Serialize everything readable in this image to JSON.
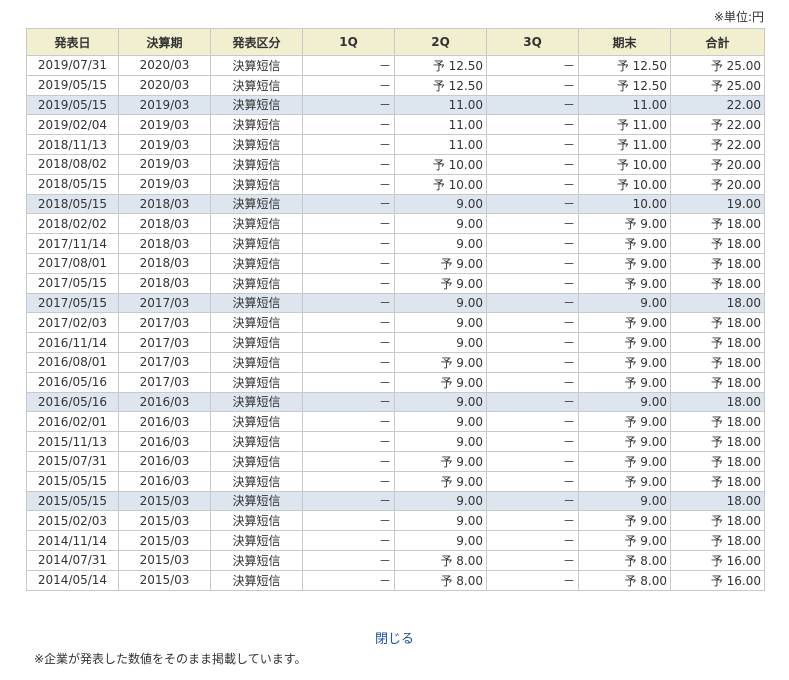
{
  "unit_label": "※単位:円",
  "headers": [
    "発表日",
    "決算期",
    "発表区分",
    "1Q",
    "2Q",
    "3Q",
    "期末",
    "合計"
  ],
  "rows": [
    {
      "date": "2019/07/31",
      "period": "2020/03",
      "type": "決算短信",
      "q1": "－",
      "q2": "予 12.50",
      "q3": "－",
      "year_end": "予 12.50",
      "total": "予 25.00",
      "highlight": false
    },
    {
      "date": "2019/05/15",
      "period": "2020/03",
      "type": "決算短信",
      "q1": "－",
      "q2": "予 12.50",
      "q3": "－",
      "year_end": "予 12.50",
      "total": "予 25.00",
      "highlight": false
    },
    {
      "date": "2019/05/15",
      "period": "2019/03",
      "type": "決算短信",
      "q1": "－",
      "q2": "11.00",
      "q3": "－",
      "year_end": "11.00",
      "total": "22.00",
      "highlight": true
    },
    {
      "date": "2019/02/04",
      "period": "2019/03",
      "type": "決算短信",
      "q1": "－",
      "q2": "11.00",
      "q3": "－",
      "year_end": "予 11.00",
      "total": "予 22.00",
      "highlight": false
    },
    {
      "date": "2018/11/13",
      "period": "2019/03",
      "type": "決算短信",
      "q1": "－",
      "q2": "11.00",
      "q3": "－",
      "year_end": "予 11.00",
      "total": "予 22.00",
      "highlight": false
    },
    {
      "date": "2018/08/02",
      "period": "2019/03",
      "type": "決算短信",
      "q1": "－",
      "q2": "予 10.00",
      "q3": "－",
      "year_end": "予 10.00",
      "total": "予 20.00",
      "highlight": false
    },
    {
      "date": "2018/05/15",
      "period": "2019/03",
      "type": "決算短信",
      "q1": "－",
      "q2": "予 10.00",
      "q3": "－",
      "year_end": "予 10.00",
      "total": "予 20.00",
      "highlight": false
    },
    {
      "date": "2018/05/15",
      "period": "2018/03",
      "type": "決算短信",
      "q1": "－",
      "q2": "9.00",
      "q3": "－",
      "year_end": "10.00",
      "total": "19.00",
      "highlight": true
    },
    {
      "date": "2018/02/02",
      "period": "2018/03",
      "type": "決算短信",
      "q1": "－",
      "q2": "9.00",
      "q3": "－",
      "year_end": "予 9.00",
      "total": "予 18.00",
      "highlight": false
    },
    {
      "date": "2017/11/14",
      "period": "2018/03",
      "type": "決算短信",
      "q1": "－",
      "q2": "9.00",
      "q3": "－",
      "year_end": "予 9.00",
      "total": "予 18.00",
      "highlight": false
    },
    {
      "date": "2017/08/01",
      "period": "2018/03",
      "type": "決算短信",
      "q1": "－",
      "q2": "予 9.00",
      "q3": "－",
      "year_end": "予 9.00",
      "total": "予 18.00",
      "highlight": false
    },
    {
      "date": "2017/05/15",
      "period": "2018/03",
      "type": "決算短信",
      "q1": "－",
      "q2": "予 9.00",
      "q3": "－",
      "year_end": "予 9.00",
      "total": "予 18.00",
      "highlight": false
    },
    {
      "date": "2017/05/15",
      "period": "2017/03",
      "type": "決算短信",
      "q1": "－",
      "q2": "9.00",
      "q3": "－",
      "year_end": "9.00",
      "total": "18.00",
      "highlight": true
    },
    {
      "date": "2017/02/03",
      "period": "2017/03",
      "type": "決算短信",
      "q1": "－",
      "q2": "9.00",
      "q3": "－",
      "year_end": "予 9.00",
      "total": "予 18.00",
      "highlight": false
    },
    {
      "date": "2016/11/14",
      "period": "2017/03",
      "type": "決算短信",
      "q1": "－",
      "q2": "9.00",
      "q3": "－",
      "year_end": "予 9.00",
      "total": "予 18.00",
      "highlight": false
    },
    {
      "date": "2016/08/01",
      "period": "2017/03",
      "type": "決算短信",
      "q1": "－",
      "q2": "予 9.00",
      "q3": "－",
      "year_end": "予 9.00",
      "total": "予 18.00",
      "highlight": false
    },
    {
      "date": "2016/05/16",
      "period": "2017/03",
      "type": "決算短信",
      "q1": "－",
      "q2": "予 9.00",
      "q3": "－",
      "year_end": "予 9.00",
      "total": "予 18.00",
      "highlight": false
    },
    {
      "date": "2016/05/16",
      "period": "2016/03",
      "type": "決算短信",
      "q1": "－",
      "q2": "9.00",
      "q3": "－",
      "year_end": "9.00",
      "total": "18.00",
      "highlight": true
    },
    {
      "date": "2016/02/01",
      "period": "2016/03",
      "type": "決算短信",
      "q1": "－",
      "q2": "9.00",
      "q3": "－",
      "year_end": "予 9.00",
      "total": "予 18.00",
      "highlight": false
    },
    {
      "date": "2015/11/13",
      "period": "2016/03",
      "type": "決算短信",
      "q1": "－",
      "q2": "9.00",
      "q3": "－",
      "year_end": "予 9.00",
      "total": "予 18.00",
      "highlight": false
    },
    {
      "date": "2015/07/31",
      "period": "2016/03",
      "type": "決算短信",
      "q1": "－",
      "q2": "予 9.00",
      "q3": "－",
      "year_end": "予 9.00",
      "total": "予 18.00",
      "highlight": false
    },
    {
      "date": "2015/05/15",
      "period": "2016/03",
      "type": "決算短信",
      "q1": "－",
      "q2": "予 9.00",
      "q3": "－",
      "year_end": "予 9.00",
      "total": "予 18.00",
      "highlight": false
    },
    {
      "date": "2015/05/15",
      "period": "2015/03",
      "type": "決算短信",
      "q1": "－",
      "q2": "9.00",
      "q3": "－",
      "year_end": "9.00",
      "total": "18.00",
      "highlight": true
    },
    {
      "date": "2015/02/03",
      "period": "2015/03",
      "type": "決算短信",
      "q1": "－",
      "q2": "9.00",
      "q3": "－",
      "year_end": "予 9.00",
      "total": "予 18.00",
      "highlight": false
    },
    {
      "date": "2014/11/14",
      "period": "2015/03",
      "type": "決算短信",
      "q1": "－",
      "q2": "9.00",
      "q3": "－",
      "year_end": "予 9.00",
      "total": "予 18.00",
      "highlight": false
    },
    {
      "date": "2014/07/31",
      "period": "2015/03",
      "type": "決算短信",
      "q1": "－",
      "q2": "予 8.00",
      "q3": "－",
      "year_end": "予 8.00",
      "total": "予 16.00",
      "highlight": false
    },
    {
      "date": "2014/05/14",
      "period": "2015/03",
      "type": "決算短信",
      "q1": "－",
      "q2": "予 8.00",
      "q3": "－",
      "year_end": "予 8.00",
      "total": "予 16.00",
      "highlight": false
    }
  ],
  "close_label": "閉じる",
  "footnote": "※企業が発表した数値をそのまま掲載しています。",
  "colors": {
    "header_bg": "#f1efcf",
    "highlight_row_bg": "#dde6ef",
    "border": "#c9c9c9",
    "link": "#1a4fa0"
  }
}
